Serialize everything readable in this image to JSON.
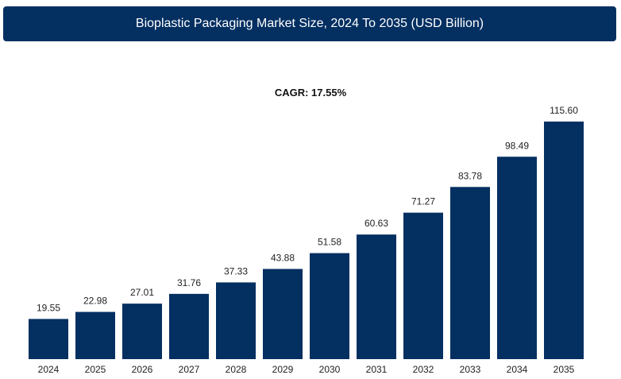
{
  "header": {
    "title": "Bioplastic Packaging Market Size, 2024 To 2035 (USD Billion)"
  },
  "colors": {
    "title_bg": "#032f61",
    "bar": "#032f61",
    "text": "#222222"
  },
  "chart_data": {
    "type": "bar",
    "title": "Bioplastic Packaging Market Size, 2024 To 2035 (USD Billion)",
    "subtitle": "CAGR: 17.55%",
    "categories": [
      "2024",
      "2025",
      "2026",
      "2027",
      "2028",
      "2029",
      "2030",
      "2031",
      "2032",
      "2033",
      "2034",
      "2035"
    ],
    "values": [
      19.55,
      22.98,
      27.01,
      31.76,
      37.33,
      43.88,
      51.58,
      60.63,
      71.27,
      83.78,
      98.49,
      115.6
    ],
    "value_labels": [
      "19.55",
      "22.98",
      "27.01",
      "31.76",
      "37.33",
      "43.88",
      "51.58",
      "60.63",
      "71.27",
      "83.78",
      "98.49",
      "115.60"
    ],
    "xlabel": "",
    "ylabel": "",
    "grid": false,
    "legend": "none"
  }
}
